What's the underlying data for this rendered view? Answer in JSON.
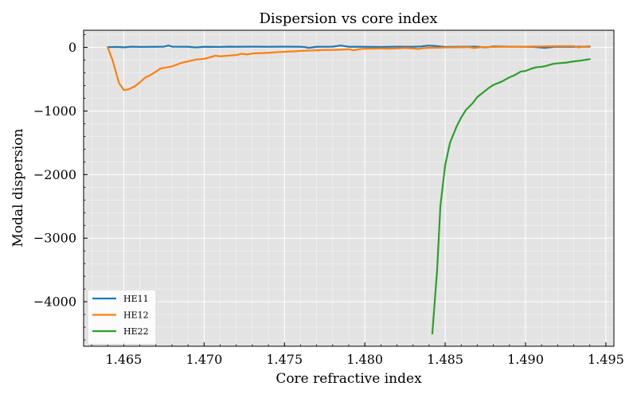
{
  "chart_data": {
    "type": "line",
    "title": "Dispersion vs core index",
    "xlabel": "Core refractive index",
    "ylabel": "Modal dispersion",
    "xlim": [
      1.4625,
      1.4955
    ],
    "ylim": [
      -4700,
      270
    ],
    "xticks": [
      1.465,
      1.47,
      1.475,
      1.48,
      1.485,
      1.49,
      1.495
    ],
    "xtick_labels": [
      "1.465",
      "1.470",
      "1.475",
      "1.480",
      "1.485",
      "1.490",
      "1.495"
    ],
    "yticks": [
      0,
      -1000,
      -2000,
      -3000,
      -4000
    ],
    "ytick_labels": [
      "0",
      "−1000",
      "−2000",
      "−3000",
      "−4000"
    ],
    "grid": true,
    "legend_position": "lower-left",
    "series": [
      {
        "name": "HE11",
        "color": "#1f77b4",
        "points": [
          [
            1.464,
            5
          ],
          [
            1.4645,
            8
          ],
          [
            1.465,
            2
          ],
          [
            1.4655,
            12
          ],
          [
            1.466,
            8
          ],
          [
            1.467,
            10
          ],
          [
            1.4675,
            12
          ],
          [
            1.4678,
            30
          ],
          [
            1.468,
            12
          ],
          [
            1.469,
            10
          ],
          [
            1.4695,
            0
          ],
          [
            1.47,
            10
          ],
          [
            1.471,
            8
          ],
          [
            1.4715,
            12
          ],
          [
            1.472,
            10
          ],
          [
            1.473,
            12
          ],
          [
            1.474,
            10
          ],
          [
            1.475,
            12
          ],
          [
            1.476,
            10
          ],
          [
            1.4763,
            5
          ],
          [
            1.4765,
            -8
          ],
          [
            1.477,
            10
          ],
          [
            1.478,
            12
          ],
          [
            1.4785,
            30
          ],
          [
            1.479,
            10
          ],
          [
            1.48,
            10
          ],
          [
            1.481,
            8
          ],
          [
            1.482,
            12
          ],
          [
            1.483,
            10
          ],
          [
            1.4835,
            15
          ],
          [
            1.484,
            30
          ],
          [
            1.4845,
            20
          ],
          [
            1.485,
            8
          ],
          [
            1.486,
            10
          ],
          [
            1.487,
            12
          ],
          [
            1.4875,
            0
          ],
          [
            1.488,
            15
          ],
          [
            1.489,
            12
          ],
          [
            1.49,
            10
          ],
          [
            1.4905,
            8
          ],
          [
            1.4912,
            -8
          ],
          [
            1.4918,
            10
          ],
          [
            1.492,
            12
          ],
          [
            1.493,
            10
          ],
          [
            1.4935,
            10
          ],
          [
            1.494,
            12
          ]
        ]
      },
      {
        "name": "HE12",
        "color": "#ff7f0e",
        "points": [
          [
            1.464,
            0
          ],
          [
            1.4643,
            -200
          ],
          [
            1.4647,
            -560
          ],
          [
            1.465,
            -670
          ],
          [
            1.4653,
            -660
          ],
          [
            1.4657,
            -610
          ],
          [
            1.466,
            -550
          ],
          [
            1.4663,
            -480
          ],
          [
            1.4667,
            -430
          ],
          [
            1.467,
            -380
          ],
          [
            1.4673,
            -330
          ],
          [
            1.468,
            -300
          ],
          [
            1.4685,
            -250
          ],
          [
            1.4688,
            -230
          ],
          [
            1.469,
            -220
          ],
          [
            1.4695,
            -190
          ],
          [
            1.47,
            -180
          ],
          [
            1.4703,
            -160
          ],
          [
            1.4707,
            -130
          ],
          [
            1.471,
            -140
          ],
          [
            1.4715,
            -130
          ],
          [
            1.472,
            -120
          ],
          [
            1.4723,
            -100
          ],
          [
            1.4727,
            -110
          ],
          [
            1.473,
            -95
          ],
          [
            1.4735,
            -90
          ],
          [
            1.474,
            -85
          ],
          [
            1.4745,
            -75
          ],
          [
            1.475,
            -70
          ],
          [
            1.4753,
            -65
          ],
          [
            1.4757,
            -60
          ],
          [
            1.476,
            -55
          ],
          [
            1.4765,
            -50
          ],
          [
            1.477,
            -45
          ],
          [
            1.4775,
            -40
          ],
          [
            1.478,
            -40
          ],
          [
            1.4785,
            -35
          ],
          [
            1.479,
            -30
          ],
          [
            1.4793,
            -45
          ],
          [
            1.4797,
            -25
          ],
          [
            1.48,
            -20
          ],
          [
            1.4805,
            -20
          ],
          [
            1.481,
            -15
          ],
          [
            1.4815,
            -20
          ],
          [
            1.482,
            -15
          ],
          [
            1.4825,
            -10
          ],
          [
            1.483,
            -15
          ],
          [
            1.4833,
            -25
          ],
          [
            1.4837,
            -10
          ],
          [
            1.484,
            -5
          ],
          [
            1.4845,
            -5
          ],
          [
            1.485,
            0
          ],
          [
            1.4855,
            0
          ],
          [
            1.486,
            2
          ],
          [
            1.4865,
            5
          ],
          [
            1.4868,
            -10
          ],
          [
            1.4872,
            5
          ],
          [
            1.488,
            8
          ],
          [
            1.489,
            10
          ],
          [
            1.4895,
            10
          ],
          [
            1.49,
            12
          ],
          [
            1.4905,
            15
          ],
          [
            1.491,
            15
          ],
          [
            1.4915,
            18
          ],
          [
            1.492,
            20
          ],
          [
            1.4925,
            20
          ],
          [
            1.493,
            20
          ],
          [
            1.4933,
            0
          ],
          [
            1.4937,
            15
          ],
          [
            1.494,
            20
          ]
        ]
      },
      {
        "name": "HE22",
        "color": "#2ca02c",
        "points": [
          [
            1.4842,
            -4500
          ],
          [
            1.4845,
            -3500
          ],
          [
            1.4847,
            -2500
          ],
          [
            1.485,
            -1850
          ],
          [
            1.4853,
            -1500
          ],
          [
            1.4857,
            -1250
          ],
          [
            1.486,
            -1100
          ],
          [
            1.4863,
            -980
          ],
          [
            1.4867,
            -880
          ],
          [
            1.487,
            -780
          ],
          [
            1.4873,
            -720
          ],
          [
            1.4877,
            -640
          ],
          [
            1.488,
            -590
          ],
          [
            1.4885,
            -540
          ],
          [
            1.489,
            -470
          ],
          [
            1.4893,
            -440
          ],
          [
            1.4897,
            -380
          ],
          [
            1.49,
            -370
          ],
          [
            1.4903,
            -340
          ],
          [
            1.4907,
            -310
          ],
          [
            1.491,
            -305
          ],
          [
            1.4913,
            -290
          ],
          [
            1.4917,
            -260
          ],
          [
            1.492,
            -250
          ],
          [
            1.4925,
            -240
          ],
          [
            1.493,
            -220
          ],
          [
            1.4935,
            -205
          ],
          [
            1.494,
            -185
          ]
        ]
      }
    ]
  }
}
